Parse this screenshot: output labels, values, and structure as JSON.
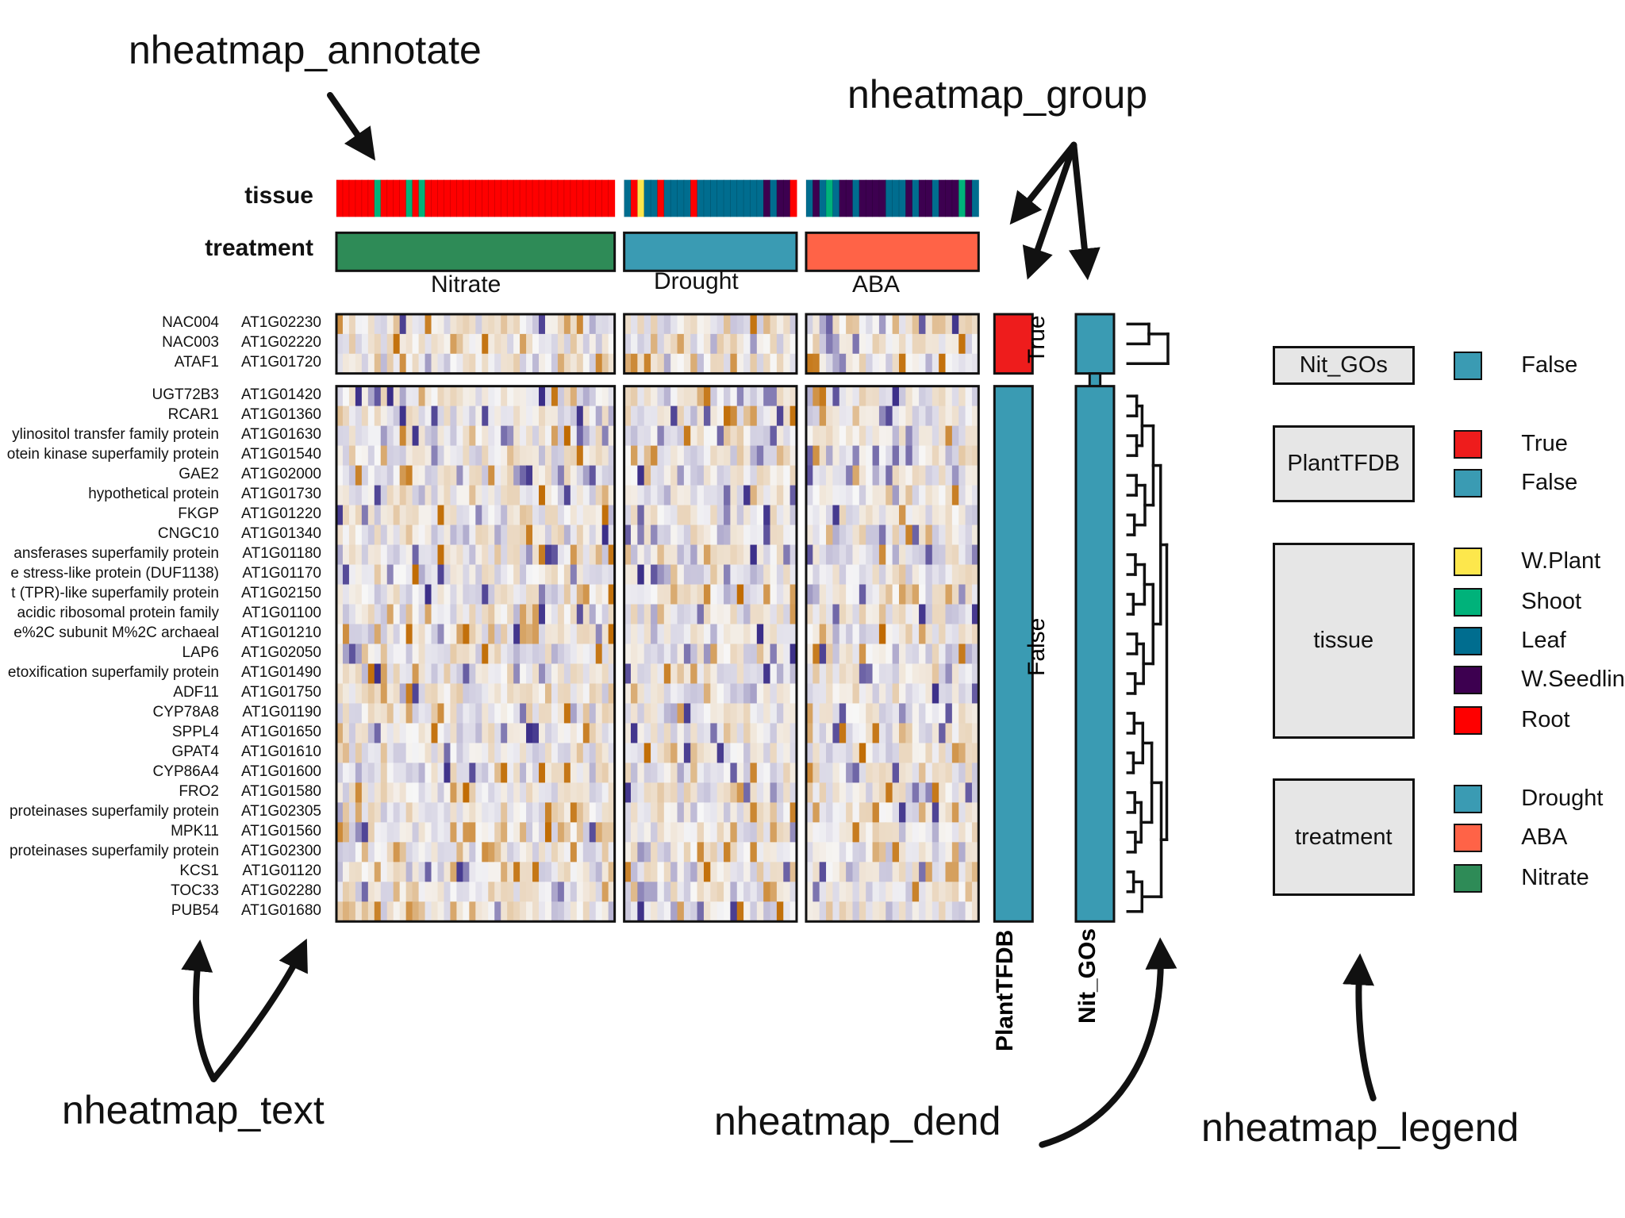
{
  "callouts": {
    "annotate": "nheatmap_annotate",
    "group": "nheatmap_group",
    "text": "nheatmap_text",
    "dend": "nheatmap_dend",
    "legend": "nheatmap_legend"
  },
  "annotation_labels": {
    "tissue": "tissue",
    "treatment": "treatment"
  },
  "groups": [
    {
      "name": "Nitrate",
      "color": "#2e8b57"
    },
    {
      "name": "Drought",
      "color": "#3a9bb3"
    },
    {
      "name": "ABA",
      "color": "#ff6347"
    }
  ],
  "side_bars": {
    "plant_tfdb_label": "PlantTFDB",
    "nit_gos_label": "Nit_GOs",
    "true_label": "True",
    "false_label": "False"
  },
  "genes_top": [
    {
      "name": "NAC004",
      "id": "AT1G02230"
    },
    {
      "name": "NAC003",
      "id": "AT1G02220"
    },
    {
      "name": "ATAF1",
      "id": "AT1G01720"
    }
  ],
  "genes_bottom": [
    {
      "name": "UGT72B3",
      "id": "AT1G01420"
    },
    {
      "name": "RCAR1",
      "id": "AT1G01360"
    },
    {
      "name": "ylinositol transfer family protein",
      "id": "AT1G01630"
    },
    {
      "name": "otein kinase superfamily protein",
      "id": "AT1G01540"
    },
    {
      "name": "GAE2",
      "id": "AT1G02000"
    },
    {
      "name": "hypothetical protein",
      "id": "AT1G01730"
    },
    {
      "name": "FKGP",
      "id": "AT1G01220"
    },
    {
      "name": "CNGC10",
      "id": "AT1G01340"
    },
    {
      "name": "ansferases superfamily protein",
      "id": "AT1G01180"
    },
    {
      "name": "e stress-like protein (DUF1138)",
      "id": "AT1G01170"
    },
    {
      "name": "t (TPR)-like superfamily protein",
      "id": "AT1G02150"
    },
    {
      "name": "acidic ribosomal protein family",
      "id": "AT1G01100"
    },
    {
      "name": "e%2C subunit M%2C archaeal",
      "id": "AT1G01210"
    },
    {
      "name": "LAP6",
      "id": "AT1G02050"
    },
    {
      "name": "etoxification superfamily protein",
      "id": "AT1G01490"
    },
    {
      "name": "ADF11",
      "id": "AT1G01750"
    },
    {
      "name": "CYP78A8",
      "id": "AT1G01190"
    },
    {
      "name": "SPPL4",
      "id": "AT1G01650"
    },
    {
      "name": "GPAT4",
      "id": "AT1G01610"
    },
    {
      "name": "CYP86A4",
      "id": "AT1G01600"
    },
    {
      "name": "FRO2",
      "id": "AT1G01580"
    },
    {
      "name": "proteinases superfamily protein",
      "id": "AT1G02305"
    },
    {
      "name": "MPK11",
      "id": "AT1G01560"
    },
    {
      "name": "proteinases superfamily protein",
      "id": "AT1G02300"
    },
    {
      "name": "KCS1",
      "id": "AT1G01120"
    },
    {
      "name": "TOC33",
      "id": "AT1G02280"
    },
    {
      "name": "PUB54",
      "id": "AT1G01680"
    }
  ],
  "legend": {
    "blocks": [
      {
        "title": "Nit_GOs",
        "items": [
          {
            "label": "False",
            "color": "#3a9bb3"
          }
        ]
      },
      {
        "title": "PlantTFDB",
        "items": [
          {
            "label": "True",
            "color": "#ee1c1c"
          },
          {
            "label": "False",
            "color": "#3a9bb3"
          }
        ]
      },
      {
        "title": "tissue",
        "items": [
          {
            "label": "W.Plant",
            "color": "#fde74c"
          },
          {
            "label": "Shoot",
            "color": "#00b27a"
          },
          {
            "label": "Leaf",
            "color": "#006d8f"
          },
          {
            "label": "W.Seedling",
            "color": "#3d0050"
          },
          {
            "label": "Root",
            "color": "#fe0000"
          }
        ]
      },
      {
        "title": "treatment",
        "items": [
          {
            "label": "Drought",
            "color": "#3a9bb3"
          },
          {
            "label": "ABA",
            "color": "#ff6347"
          },
          {
            "label": "Nitrate",
            "color": "#2e8b57"
          }
        ]
      }
    ]
  },
  "colors": {
    "heat_low": "#3a2d88",
    "heat_mid": "#f7f7f7",
    "heat_high": "#c06a00",
    "true_red": "#ee1c1c",
    "false_teal": "#3a9bb3"
  }
}
